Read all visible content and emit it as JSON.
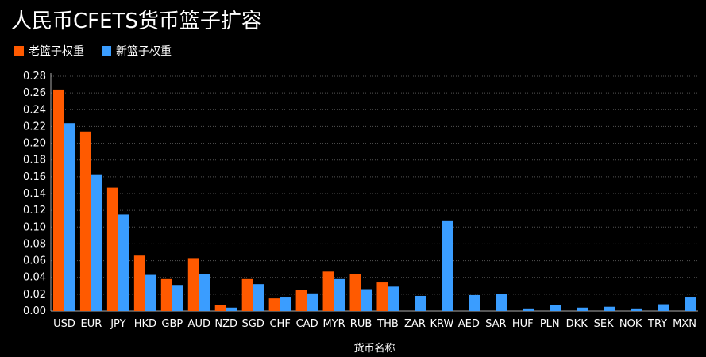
{
  "title": "人民币CFETS货币篮子扩容",
  "legend": {
    "old": "老篮子权重",
    "new": "新篮子权重"
  },
  "colors": {
    "old": "#ff5a00",
    "new": "#3a9dff",
    "grid": "#555555",
    "axis": "#aaaaaa"
  },
  "chart_data": {
    "type": "bar",
    "title": "人民币CFETS货币篮子扩容",
    "xlabel": "货币名称",
    "ylabel": "",
    "ylim": [
      0,
      0.28
    ],
    "yticks": [
      "0.00",
      "0.02",
      "0.04",
      "0.06",
      "0.08",
      "0.10",
      "0.12",
      "0.14",
      "0.16",
      "0.18",
      "0.20",
      "0.22",
      "0.24",
      "0.26",
      "0.28"
    ],
    "grid": true,
    "legend_position": "top-left",
    "categories": [
      "USD",
      "EUR",
      "JPY",
      "HKD",
      "GBP",
      "AUD",
      "NZD",
      "SGD",
      "CHF",
      "CAD",
      "MYR",
      "RUB",
      "THB",
      "ZAR",
      "KRW",
      "AED",
      "SAR",
      "HUF",
      "PLN",
      "DKK",
      "SEK",
      "NOK",
      "TRY",
      "MXN"
    ],
    "series": [
      {
        "name": "老篮子权重",
        "values": [
          0.264,
          0.214,
          0.147,
          0.066,
          0.038,
          0.063,
          0.007,
          0.038,
          0.015,
          0.025,
          0.047,
          0.044,
          0.034,
          0,
          0,
          0,
          0,
          0,
          0,
          0,
          0,
          0,
          0,
          0
        ]
      },
      {
        "name": "新篮子权重",
        "values": [
          0.224,
          0.163,
          0.115,
          0.043,
          0.031,
          0.044,
          0.004,
          0.032,
          0.017,
          0.021,
          0.038,
          0.026,
          0.029,
          0.018,
          0.108,
          0.019,
          0.02,
          0.003,
          0.007,
          0.004,
          0.005,
          0.003,
          0.008,
          0.017
        ]
      }
    ]
  }
}
